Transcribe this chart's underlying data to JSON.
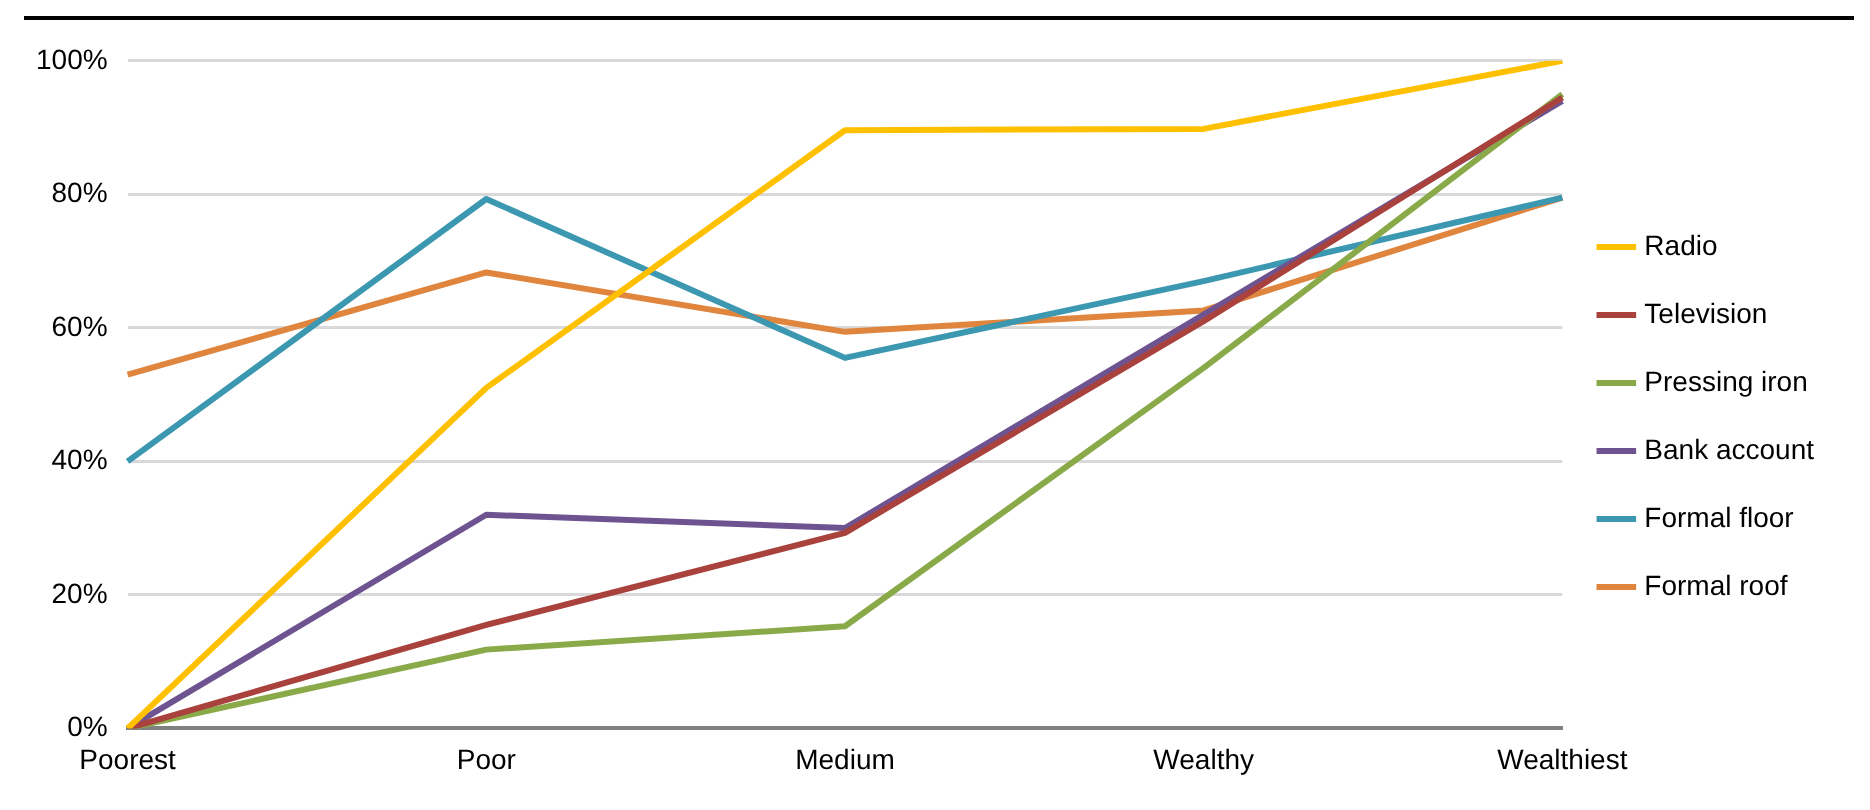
{
  "chart_data": {
    "type": "line",
    "categories": [
      "Poorest",
      "Poor",
      "Medium",
      "Wealthy",
      "Wealthiest"
    ],
    "series": [
      {
        "name": "Radio",
        "color": "#ffc000",
        "values": [
          0,
          51,
          89.6,
          89.8,
          100
        ]
      },
      {
        "name": "Television",
        "color": "#a9413c",
        "values": [
          0,
          15.5,
          29.3,
          61,
          94.5
        ]
      },
      {
        "name": "Pressing iron",
        "color": "#8aaa4a",
        "values": [
          0,
          11.8,
          15.3,
          54,
          95
        ]
      },
      {
        "name": "Bank account",
        "color": "#6e5391",
        "values": [
          0,
          32,
          30,
          62,
          94
        ]
      },
      {
        "name": "Formal floor",
        "color": "#3c97b0",
        "values": [
          40,
          79.3,
          55.5,
          67,
          79.5
        ]
      },
      {
        "name": "Formal roof",
        "color": "#e0853e",
        "values": [
          53,
          68.3,
          59.4,
          62.6,
          79.5
        ]
      }
    ],
    "ylim": [
      0,
      100
    ],
    "yticks": [
      {
        "value": 0,
        "label": "0%"
      },
      {
        "value": 20,
        "label": "20%"
      },
      {
        "value": 40,
        "label": "40%"
      },
      {
        "value": 60,
        "label": "60%"
      },
      {
        "value": 80,
        "label": "80%"
      },
      {
        "value": 100,
        "label": "100%"
      }
    ],
    "grid": "y",
    "legend": "right",
    "marker": "none",
    "line_style": "solid"
  }
}
